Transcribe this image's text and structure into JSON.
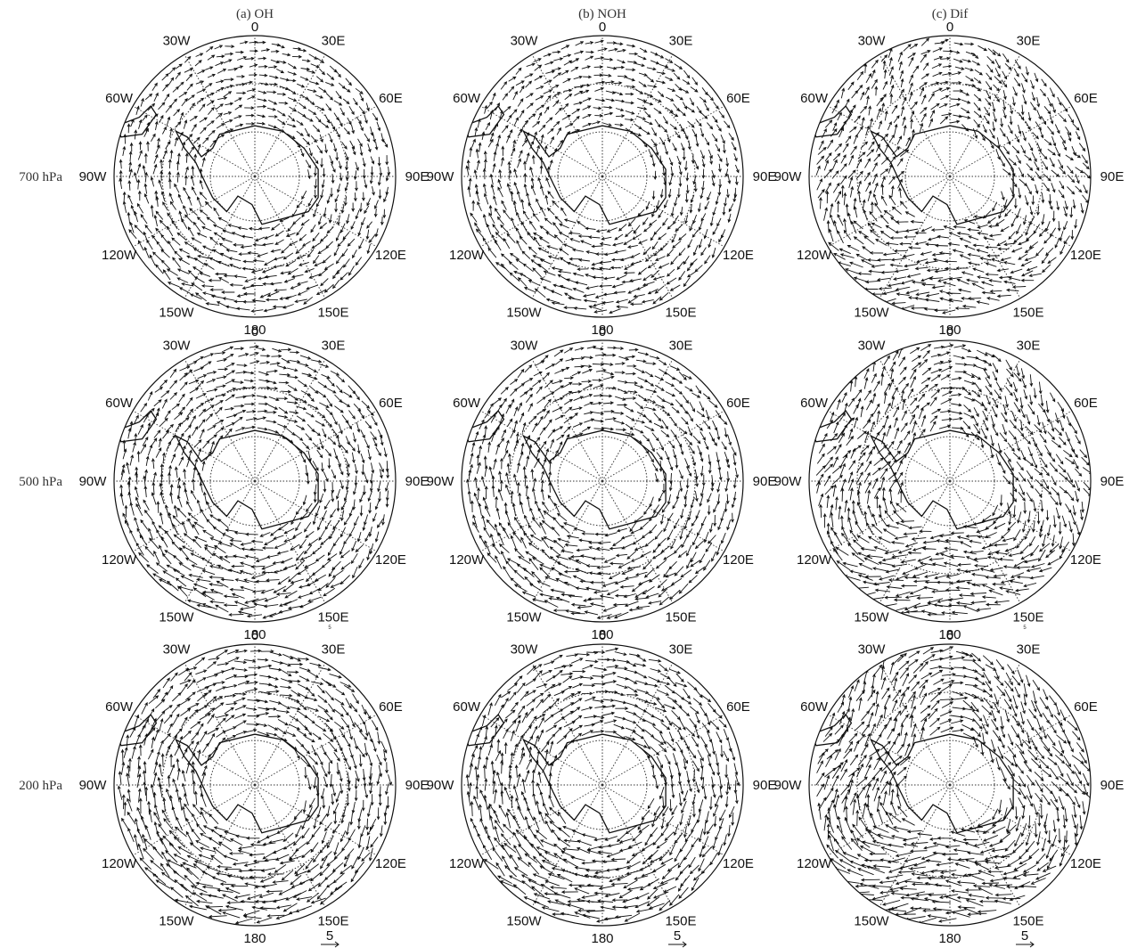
{
  "columns": [
    "(a) OH",
    "(b) NOH",
    "(c) Dif"
  ],
  "rows": [
    "700 hPa",
    "500 hPa",
    "200 hPa"
  ],
  "longitude_labels": [
    "0",
    "30E",
    "60E",
    "90E",
    "120E",
    "150E",
    "180",
    "150W",
    "120W",
    "90W",
    "60W",
    "30W"
  ],
  "reference_vector": "5"
}
